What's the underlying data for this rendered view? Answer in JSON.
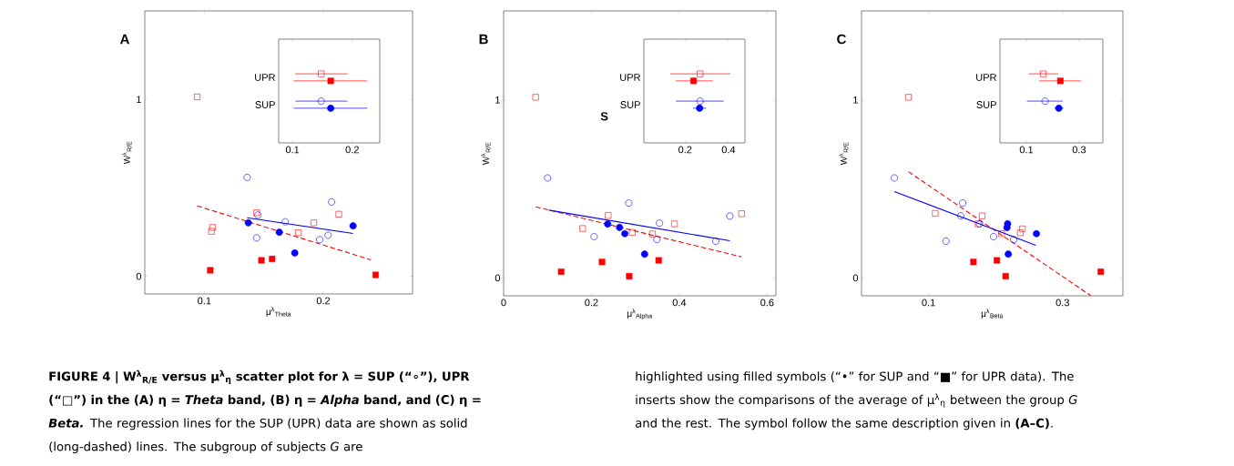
{
  "chart_data": [
    {
      "type": "scatter",
      "title": "A",
      "xlabel": "μ$^{λ}$$_{Theta}$",
      "ylabel": "W$^{λ}$$_{R/E}$",
      "xlim": [
        0.05,
        0.275
      ],
      "ylim": [
        -0.1,
        1.5
      ],
      "xticks": [
        0.1,
        0.2
      ],
      "yticks": [
        0,
        1
      ],
      "grid": false,
      "annotations": [
        "FIGURE 4 | W$^{λ}$$_{R/E}$ versus μ$^{λ}$$_{η}$ scatter plot for λ = SUP (“∘”), UPR (“□”) in the (A) η = *Theta* band, (B) η = *Alpha* band, and (C) η = *Beta.*",
        "The regression lines for the SUP (UPR) data are shown as solid (long-dashed) lines. The subgroup of subjects *G* are",
        "highlighted using filled symbols (“•” for SUP and “■” for UPR data). The inserts show the comparisons of the average of μ$^{λ}$$_{η}$ between the group *G* and the rest. The symbol follow the same description given in **(A–C)**."
      ],
      "series": [
        {
          "type": "scatter",
          "color": "#ff0000",
          "marker": "square",
          "x": [
            0.094,
            0.107,
            0.106,
            0.144,
            0.179,
            0.192,
            0.213
          ],
          "values": [
            1.014,
            0.276,
            0.254,
            0.359,
            0.246,
            0.302,
            0.351
          ]
        },
        {
          "type": "scatter",
          "color": "#ff0000",
          "marker": "square",
          "x": [
            0.105,
            0.148,
            0.157,
            0.244
          ],
          "values": [
            0.034,
            0.09,
            0.098,
            0.008
          ]
        },
        {
          "type": "scatter",
          "color": "#0000ff",
          "marker": "circle",
          "x": [
            0.136,
            0.145,
            0.144,
            0.168,
            0.197,
            0.204,
            0.207
          ],
          "values": [
            0.559,
            0.346,
            0.217,
            0.308,
            0.207,
            0.232,
            0.42
          ]
        },
        {
          "type": "scatter",
          "color": "#0000ff",
          "marker": "circle",
          "x": [
            0.137,
            0.163,
            0.176,
            0.225
          ],
          "values": [
            0.302,
            0.249,
            0.132,
            0.285
          ]
        },
        {
          "type": "line",
          "color": "#ff0000",
          "line_style": "dashed",
          "marker": "none",
          "x": [
            0.094,
            0.24
          ],
          "values": [
            0.398,
            0.093
          ]
        },
        {
          "type": "line",
          "color": "#0000ff",
          "line_style": "solid",
          "marker": "none",
          "x": [
            0.136,
            0.225
          ],
          "values": [
            0.331,
            0.242
          ]
        }
      ]
    },
    {
      "type": "scatter",
      "orientation": "horizontal",
      "categories": [
        "UPR",
        "SUP"
      ],
      "xlim": [
        0.077,
        0.246
      ],
      "xticks": [
        0.1,
        0.2
      ],
      "grid": false,
      "series": [
        {
          "type": "scatter",
          "color": "#ff0000",
          "marker": "square",
          "values": [
            0.148,
            null
          ],
          "errors": [
            [
              0.105,
              0.192
            ],
            null
          ]
        },
        {
          "type": "scatter",
          "color": "#ff0000",
          "marker": "square",
          "values": [
            0.164,
            null
          ],
          "errors": [
            [
              0.102,
              0.225
            ],
            null
          ]
        },
        {
          "type": "scatter",
          "color": "#0000ff",
          "marker": "circle",
          "values": [
            null,
            0.148
          ],
          "errors": [
            null,
            [
              0.105,
              0.192
            ]
          ]
        },
        {
          "type": "scatter",
          "color": "#0000ff",
          "marker": "circle",
          "values": [
            null,
            0.164
          ],
          "errors": [
            null,
            [
              0.102,
              0.225
            ]
          ]
        }
      ]
    },
    {
      "type": "scatter",
      "title": "B",
      "xlabel": "μ$^{λ}$$_{Alpha}$",
      "ylabel": "W$^{λ}$$_{R/E}$",
      "xlim": [
        0,
        0.62
      ],
      "ylim": [
        -0.1,
        1.5
      ],
      "xticks": [
        0,
        0.2,
        0.4,
        0.6
      ],
      "yticks": [
        0,
        1
      ],
      "grid": false,
      "annotations": [
        "S"
      ],
      "series": [
        {
          "type": "scatter",
          "color": "#ff0000",
          "marker": "square",
          "x": [
            0.073,
            0.18,
            0.238,
            0.293,
            0.339,
            0.389,
            0.542
          ],
          "values": [
            1.015,
            0.278,
            0.351,
            0.256,
            0.247,
            0.304,
            0.361
          ]
        },
        {
          "type": "scatter",
          "color": "#ff0000",
          "marker": "square",
          "x": [
            0.131,
            0.224,
            0.286,
            0.353
          ],
          "values": [
            0.035,
            0.09,
            0.01,
            0.099
          ]
        },
        {
          "type": "scatter",
          "color": "#0000ff",
          "marker": "circle",
          "x": [
            0.1,
            0.206,
            0.285,
            0.355,
            0.349,
            0.483,
            0.515
          ],
          "values": [
            0.562,
            0.232,
            0.421,
            0.308,
            0.217,
            0.207,
            0.348
          ]
        },
        {
          "type": "scatter",
          "color": "#0000ff",
          "marker": "circle",
          "x": [
            0.237,
            0.264,
            0.276,
            0.321
          ],
          "values": [
            0.303,
            0.284,
            0.249,
            0.134
          ]
        },
        {
          "type": "line",
          "color": "#ff0000",
          "line_style": "dashed",
          "marker": "none",
          "x": [
            0.073,
            0.541
          ],
          "values": [
            0.4,
            0.119
          ]
        },
        {
          "type": "line",
          "color": "#0000ff",
          "line_style": "solid",
          "marker": "none",
          "x": [
            0.103,
            0.515
          ],
          "values": [
            0.381,
            0.209
          ]
        }
      ]
    },
    {
      "type": "scatter",
      "orientation": "horizontal",
      "categories": [
        "UPR",
        "SUP"
      ],
      "xlim": [
        0.01,
        0.476
      ],
      "xticks": [
        0.2,
        0.4
      ],
      "grid": false,
      "series": [
        {
          "type": "scatter",
          "color": "#ff0000",
          "marker": "square",
          "values": [
            0.269,
            null
          ],
          "errors": [
            [
              0.132,
              0.408
            ],
            null
          ]
        },
        {
          "type": "scatter",
          "color": "#ff0000",
          "marker": "square",
          "values": [
            0.239,
            null
          ],
          "errors": [
            [
              0.156,
              0.328
            ],
            null
          ]
        },
        {
          "type": "scatter",
          "color": "#0000ff",
          "marker": "circle",
          "values": [
            null,
            0.269
          ],
          "errors": [
            null,
            [
              0.158,
              0.378
            ]
          ]
        },
        {
          "type": "scatter",
          "color": "#0000ff",
          "marker": "circle",
          "values": [
            null,
            0.267
          ],
          "errors": [
            null,
            [
              0.236,
              0.297
            ]
          ]
        }
      ]
    },
    {
      "type": "scatter",
      "title": "C",
      "xlabel": "μ$^{λ}$$_{Beta}$",
      "ylabel": "W$^{λ}$$_{R/E}$",
      "xlim": [
        0,
        0.39
      ],
      "ylim": [
        -0.1,
        1.5
      ],
      "xticks": [
        0.1,
        0.3
      ],
      "yticks": [
        0,
        1
      ],
      "grid": false,
      "series": [
        {
          "type": "scatter",
          "color": "#ff0000",
          "marker": "square",
          "x": [
            0.07,
            0.11,
            0.18,
            0.174,
            0.209,
            0.237,
            0.24
          ],
          "values": [
            1.015,
            0.363,
            0.349,
            0.304,
            0.249,
            0.254,
            0.276
          ]
        },
        {
          "type": "scatter",
          "color": "#ff0000",
          "marker": "square",
          "x": [
            0.167,
            0.202,
            0.215,
            0.357
          ],
          "values": [
            0.09,
            0.099,
            0.01,
            0.035
          ]
        },
        {
          "type": "scatter",
          "color": "#0000ff",
          "marker": "circle",
          "x": [
            0.049,
            0.151,
            0.148,
            0.176,
            0.197,
            0.126,
            0.227
          ],
          "values": [
            0.562,
            0.421,
            0.349,
            0.304,
            0.232,
            0.207,
            0.216
          ]
        },
        {
          "type": "scatter",
          "color": "#0000ff",
          "marker": "circle",
          "x": [
            0.218,
            0.217,
            0.219,
            0.261
          ],
          "values": [
            0.304,
            0.283,
            0.134,
            0.249
          ]
        },
        {
          "type": "line",
          "color": "#ff0000",
          "line_style": "dashed",
          "marker": "none",
          "x": [
            0.07,
            0.342
          ],
          "values": [
            0.597,
            -0.099
          ]
        },
        {
          "type": "line",
          "color": "#0000ff",
          "line_style": "solid",
          "marker": "none",
          "x": [
            0.049,
            0.26
          ],
          "values": [
            0.485,
            0.184
          ]
        }
      ]
    },
    {
      "type": "scatter",
      "orientation": "horizontal",
      "categories": [
        "UPR",
        "SUP"
      ],
      "xlim": [
        0,
        0.39
      ],
      "xticks": [
        0.1,
        0.3
      ],
      "grid": false,
      "series": [
        {
          "type": "scatter",
          "color": "#ff0000",
          "marker": "square",
          "values": [
            0.164,
            null
          ],
          "errors": [
            [
              0.109,
              0.221
            ],
            null
          ]
        },
        {
          "type": "scatter",
          "color": "#ff0000",
          "marker": "square",
          "values": [
            0.229,
            null
          ],
          "errors": [
            [
              0.148,
              0.307
            ],
            null
          ]
        },
        {
          "type": "scatter",
          "color": "#0000ff",
          "marker": "circle",
          "values": [
            null,
            0.171
          ],
          "errors": [
            null,
            [
              0.102,
              0.238
            ]
          ]
        },
        {
          "type": "scatter",
          "color": "#0000ff",
          "marker": "circle",
          "values": [
            null,
            0.223
          ],
          "errors": [
            null,
            [
              0.206,
              0.241
            ]
          ]
        }
      ]
    }
  ]
}
